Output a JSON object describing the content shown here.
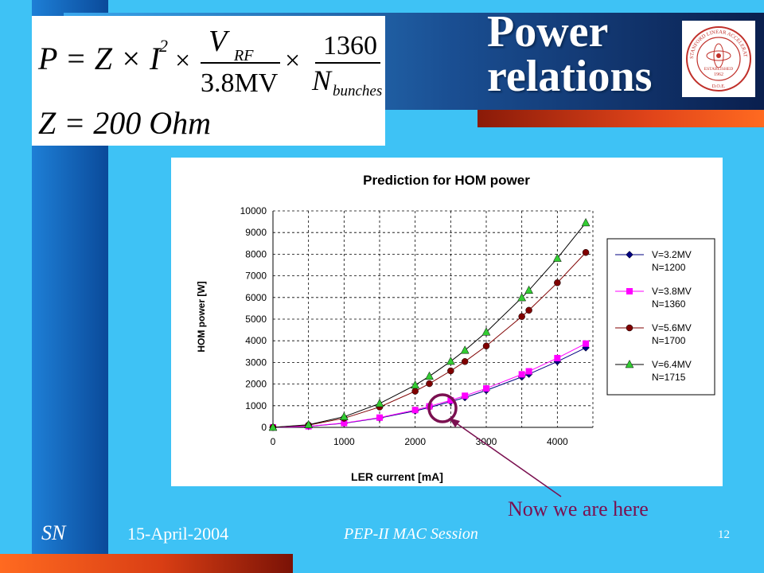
{
  "slide": {
    "title_line1": "Power",
    "title_line2": "relations",
    "annotation": "Now we are here",
    "footer_initials": "SN",
    "footer_date": "15-April-2004",
    "footer_session": "PEP-II MAC Session",
    "page_number": "12"
  },
  "formula": {
    "line1_lhs": "P = Z × I",
    "line1_exp": "2",
    "times": "×",
    "frac1_num": "V",
    "frac1_num_sub": "RF",
    "frac1_den": "3.8MV",
    "frac2_num": "1360",
    "frac2_den": "N",
    "frac2_den_sub": "bunches",
    "line2": "Z = 200 Ohm"
  },
  "logo": {
    "text_top": "STANFORD LINEAR ACCELERATOR CENTER",
    "established": "ESTABLISHED",
    "year": "1962",
    "doe": "D.O.E."
  },
  "colors": {
    "series1": "#000080",
    "series2": "#ff00ff",
    "series3": "#800000",
    "series4": "#33cc33",
    "annotation": "#7a1050"
  },
  "chart_data": {
    "type": "line",
    "title": "Prediction for HOM power",
    "xlabel": "LER current [mA]",
    "ylabel": "HOM power [W]",
    "xlim": [
      0,
      4500
    ],
    "ylim": [
      0,
      10000
    ],
    "xticks": [
      0,
      1000,
      2000,
      3000,
      4000
    ],
    "yticks": [
      0,
      1000,
      2000,
      3000,
      4000,
      5000,
      6000,
      7000,
      8000,
      9000,
      10000
    ],
    "grid": true,
    "legend_position": "right",
    "x": [
      0,
      500,
      1000,
      1500,
      2000,
      2200,
      2500,
      2700,
      3000,
      3500,
      3600,
      4000,
      4400
    ],
    "series": [
      {
        "name_line1": "V=3.2MV",
        "name_line2": "N=1200",
        "marker": "diamond",
        "values": [
          0,
          48,
          190,
          430,
          760,
          920,
          1190,
          1380,
          1710,
          2330,
          2460,
          3040,
          3680
        ]
      },
      {
        "name_line1": "V=3.8MV",
        "name_line2": "N=1360",
        "marker": "square",
        "values": [
          0,
          50,
          200,
          450,
          800,
          970,
          1250,
          1460,
          1800,
          2450,
          2590,
          3200,
          3870
        ]
      },
      {
        "name_line1": "V=5.6MV",
        "name_line2": "N=1700",
        "marker": "circle",
        "values": [
          0,
          105,
          420,
          940,
          1670,
          2020,
          2610,
          3040,
          3760,
          5120,
          5410,
          6680,
          8080
        ]
      },
      {
        "name_line1": "V=6.4MV",
        "name_line2": "N=1715",
        "marker": "triangle",
        "values": [
          0,
          120,
          490,
          1100,
          1950,
          2360,
          3050,
          3560,
          4400,
          5990,
          6330,
          7810,
          9450
        ]
      }
    ]
  }
}
